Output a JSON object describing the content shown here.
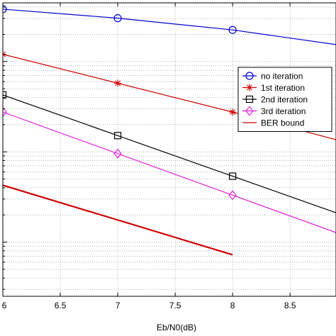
{
  "chart_data": {
    "type": "line",
    "xlabel": "Eb/N0(dB)",
    "ylabel": "",
    "title": "",
    "xlim": [
      6,
      8.9
    ],
    "x_ticks": [
      6,
      6.5,
      7,
      7.5,
      8,
      8.5
    ],
    "x_tick_labels": [
      "6",
      "6.5",
      "7",
      "7.5",
      "8",
      "8.5"
    ],
    "y_scale": "log",
    "ylim_log10": [
      -6.6,
      -3.35
    ],
    "y_decades": [
      -4,
      -5,
      -6
    ],
    "grid": true,
    "legend_position": "upper-right",
    "series": [
      {
        "name": "no iteration",
        "color": "#0000cc",
        "marker": "circle",
        "x": [
          6,
          7,
          8,
          9
        ],
        "y_log10": [
          -3.42,
          -3.52,
          -3.65,
          -3.83
        ]
      },
      {
        "name": "1st iteration",
        "color": "#cc0000",
        "marker": "asterisk",
        "x": [
          6,
          7,
          8,
          9
        ],
        "y_log10": [
          -3.92,
          -4.24,
          -4.56,
          -4.9
        ]
      },
      {
        "name": "2nd iteration",
        "color": "#000000",
        "marker": "square",
        "x": [
          6,
          7,
          8,
          9
        ],
        "y_log10": [
          -4.37,
          -4.82,
          -5.27,
          -5.72
        ]
      },
      {
        "name": "3rd iteration",
        "color": "#e020e0",
        "marker": "diamond",
        "x": [
          6,
          7,
          8,
          9
        ],
        "y_log10": [
          -4.56,
          -5.02,
          -5.48,
          -5.94
        ]
      },
      {
        "name": "BER bound",
        "color": "#cc0000",
        "marker": "none",
        "x": [
          6,
          8
        ],
        "y_log10": [
          -5.37,
          -6.14
        ]
      }
    ]
  }
}
